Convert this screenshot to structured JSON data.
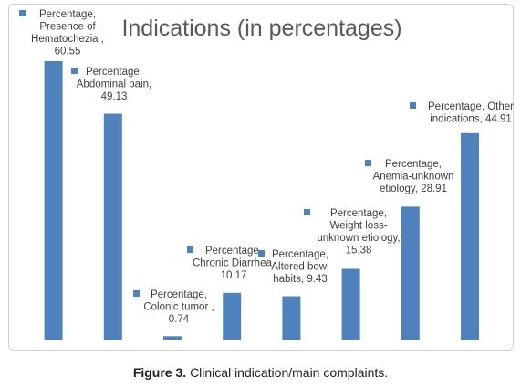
{
  "caption": {
    "label": "Figure 3.",
    "text": "Clinical indication/main complaints."
  },
  "colors": {
    "bar": "#4f81bd",
    "text": "#404040",
    "title": "#595959"
  },
  "chart_data": {
    "type": "bar",
    "title": "Indications (in percentages)",
    "categories": [
      "Presence of Hematochezia",
      "Abdominal pain",
      "Colonic tumor",
      "Chronic Diarrhea",
      "Altered bowl habits",
      "Weight loss-unknown etiology",
      "Anemia-unknown etiology",
      "Other indications"
    ],
    "series": [
      {
        "name": "Percentage",
        "values": [
          60.55,
          49.13,
          0.74,
          10.17,
          9.43,
          15.38,
          28.91,
          44.91
        ]
      }
    ],
    "data_labels": [
      [
        "Percentage,",
        "Presence of",
        "Hematochezia ,",
        "60.55"
      ],
      [
        "Percentage,",
        "Abdominal pain,",
        "49.13"
      ],
      [
        "Percentage,",
        "Colonic tumor ,",
        "0.74"
      ],
      [
        "Percentage,",
        "Chronic Diarrhea,",
        "10.17"
      ],
      [
        "Percentage,",
        "Altered bowl",
        "habits, 9.43"
      ],
      [
        "Percentage,",
        "Weight loss-",
        "unknown etiology,",
        "15.38"
      ],
      [
        "Percentage,",
        "Anemia-unknown",
        "etiology, 28.91"
      ],
      [
        "Percentage, Other",
        "indications, 44.91"
      ]
    ],
    "ylim": [
      0,
      60.55
    ],
    "grid": false,
    "legend": "none"
  }
}
